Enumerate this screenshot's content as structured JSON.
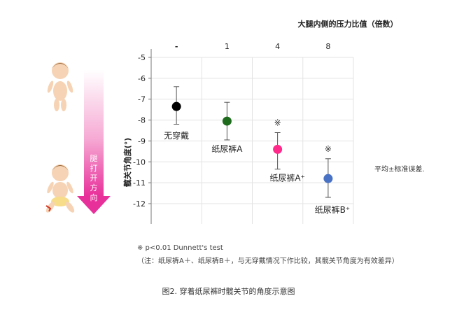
{
  "figure": {
    "caption": "图2. 穿着纸尿裤时髋关节的角度示意图",
    "note_mark": "※  p<0.01 Dunnett's test",
    "note_detail": "（注：纸尿裤A＋、纸尿裤B＋，与无穿戴情况下作比较，其髋关节角度为有效差异）",
    "legend_note": "平均±标准误差.",
    "arrow_label": [
      "腿",
      "打",
      "开",
      "方",
      "向"
    ],
    "significance_symbol": "※"
  },
  "chart_data": {
    "type": "scatter",
    "title": "大腿内侧的压力比值（倍数）",
    "ylabel": "髋关节角度(°)",
    "xlabel": "",
    "x_categories": [
      "-",
      "1",
      "4",
      "8"
    ],
    "ylim": [
      -12.5,
      -5
    ],
    "yticks": [
      -5,
      -6,
      -7,
      -8,
      -9,
      -10,
      -11,
      -12
    ],
    "grid": true,
    "points": [
      {
        "label": "无穿戴",
        "mean": -7.35,
        "err_low": -8.2,
        "err_high": -6.4,
        "color": "#000000",
        "significant": false
      },
      {
        "label": "纸尿裤A",
        "mean": -8.05,
        "err_low": -8.95,
        "err_high": -7.15,
        "color": "#1e6b1e",
        "significant": false
      },
      {
        "label": "纸尿裤A⁺",
        "mean": -9.4,
        "err_low": -10.35,
        "err_high": -8.6,
        "color": "#ff2a8a",
        "significant": true
      },
      {
        "label": "纸尿裤B⁺",
        "mean": -10.8,
        "err_low": -11.7,
        "err_high": -9.85,
        "color": "#4a72c4",
        "significant": true
      }
    ]
  }
}
